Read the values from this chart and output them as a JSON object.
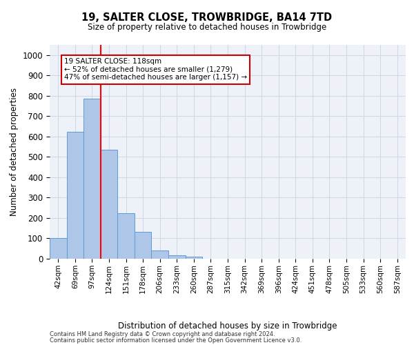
{
  "title1": "19, SALTER CLOSE, TROWBRIDGE, BA14 7TD",
  "title2": "Size of property relative to detached houses in Trowbridge",
  "xlabel": "Distribution of detached houses by size in Trowbridge",
  "ylabel": "Number of detached properties",
  "bar_values": [
    103,
    622,
    785,
    535,
    222,
    133,
    42,
    17,
    10,
    0,
    0,
    0,
    0,
    0,
    0,
    0,
    0,
    0,
    0,
    0,
    0
  ],
  "categories": [
    "42sqm",
    "69sqm",
    "97sqm",
    "124sqm",
    "151sqm",
    "178sqm",
    "206sqm",
    "233sqm",
    "260sqm",
    "287sqm",
    "315sqm",
    "342sqm",
    "369sqm",
    "396sqm",
    "424sqm",
    "451sqm",
    "478sqm",
    "505sqm",
    "533sqm",
    "560sqm",
    "587sqm"
  ],
  "bar_color": "#aec6e8",
  "bar_edge_color": "#5b9bd5",
  "grid_color": "#d0d8e8",
  "bg_color": "#eef2f8",
  "annotation_text_line1": "19 SALTER CLOSE: 118sqm",
  "annotation_text_line2": "← 52% of detached houses are smaller (1,279)",
  "annotation_text_line3": "47% of semi-detached houses are larger (1,157) →",
  "annotation_box_facecolor": "#ffffff",
  "annotation_box_edgecolor": "#cc0000",
  "red_line_x": 2.5,
  "ylim": [
    0,
    1050
  ],
  "yticks": [
    0,
    100,
    200,
    300,
    400,
    500,
    600,
    700,
    800,
    900,
    1000
  ],
  "footer1": "Contains HM Land Registry data © Crown copyright and database right 2024.",
  "footer2": "Contains public sector information licensed under the Open Government Licence v3.0."
}
